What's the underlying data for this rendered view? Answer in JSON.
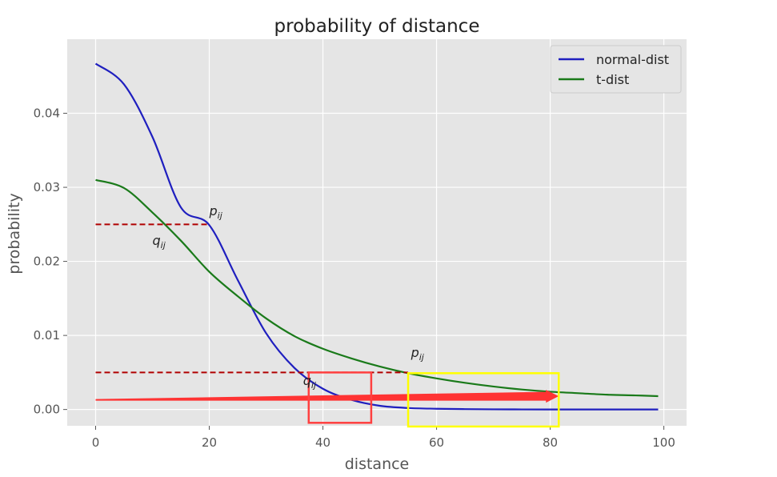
{
  "chart_data": {
    "type": "line",
    "title": "probability of distance",
    "xlabel": "distance",
    "ylabel": "probability",
    "xlim": [
      -5,
      104
    ],
    "ylim": [
      -0.0022,
      0.05
    ],
    "x_ticks": [
      0,
      20,
      40,
      60,
      80,
      100
    ],
    "x_tick_labels": [
      "0",
      "20",
      "40",
      "60",
      "80",
      "100"
    ],
    "y_ticks": [
      0.0,
      0.01,
      0.02,
      0.03,
      0.04
    ],
    "y_tick_labels": [
      "0.00",
      "0.01",
      "0.02",
      "0.03",
      "0.04"
    ],
    "grid": true,
    "background": "#e5e5e5",
    "legend_placement": "top-right",
    "series": [
      {
        "name": "normal-dist",
        "color": "#1f1fbf",
        "x": [
          0,
          5,
          10,
          15,
          20,
          25,
          30,
          35,
          40,
          45,
          50,
          55,
          60,
          65,
          70,
          75,
          80,
          85,
          90,
          95,
          99
        ],
        "values": [
          0.0467,
          0.0439,
          0.0368,
          0.0273,
          0.0249,
          0.0175,
          0.0103,
          0.0056,
          0.0028,
          0.0013,
          0.0005,
          0.0002,
          0.0001,
          5e-05,
          2e-05,
          1e-05,
          0.0,
          0.0,
          0.0,
          0.0,
          0.0
        ]
      },
      {
        "name": "t-dist",
        "color": "#1a7a1a",
        "x": [
          0,
          5,
          10,
          15,
          20,
          25,
          30,
          35,
          40,
          45,
          50,
          55,
          60,
          65,
          70,
          75,
          80,
          85,
          90,
          95,
          99
        ],
        "values": [
          0.031,
          0.0299,
          0.0266,
          0.0228,
          0.0186,
          0.0153,
          0.0123,
          0.0099,
          0.0082,
          0.0069,
          0.0058,
          0.0049,
          0.0042,
          0.0036,
          0.0031,
          0.0027,
          0.0024,
          0.0022,
          0.002,
          0.0019,
          0.0018
        ]
      }
    ],
    "annotations": {
      "hlines": [
        {
          "y": 0.025,
          "x0": 0,
          "x1": 20,
          "color": "#b00000",
          "dash": true
        },
        {
          "y": 0.005,
          "x0": 0,
          "x1": 55,
          "color": "#b00000",
          "dash": true
        }
      ],
      "labels": [
        {
          "base": "p",
          "sub": "ij",
          "x": 20,
          "y": 0.0262
        },
        {
          "base": "q",
          "sub": "ij",
          "x": 10,
          "y": 0.0222
        },
        {
          "base": "p",
          "sub": "ij",
          "x": 55.5,
          "y": 0.0071
        },
        {
          "base": "q",
          "sub": "ij",
          "x": 36.5,
          "y": 0.0033
        }
      ],
      "arrow": {
        "x0": 0,
        "y0": 0.0013,
        "x1": 81.5,
        "y1": 0.0018,
        "color": "#ff3333"
      },
      "boxes": [
        {
          "x0": 37.5,
          "x1": 48.5,
          "y0": -0.0018,
          "y1": 0.005,
          "color": "#ff4040"
        },
        {
          "x0": 55.0,
          "x1": 81.5,
          "y0": -0.0023,
          "y1": 0.0049,
          "color": "#ffff00"
        }
      ]
    }
  }
}
